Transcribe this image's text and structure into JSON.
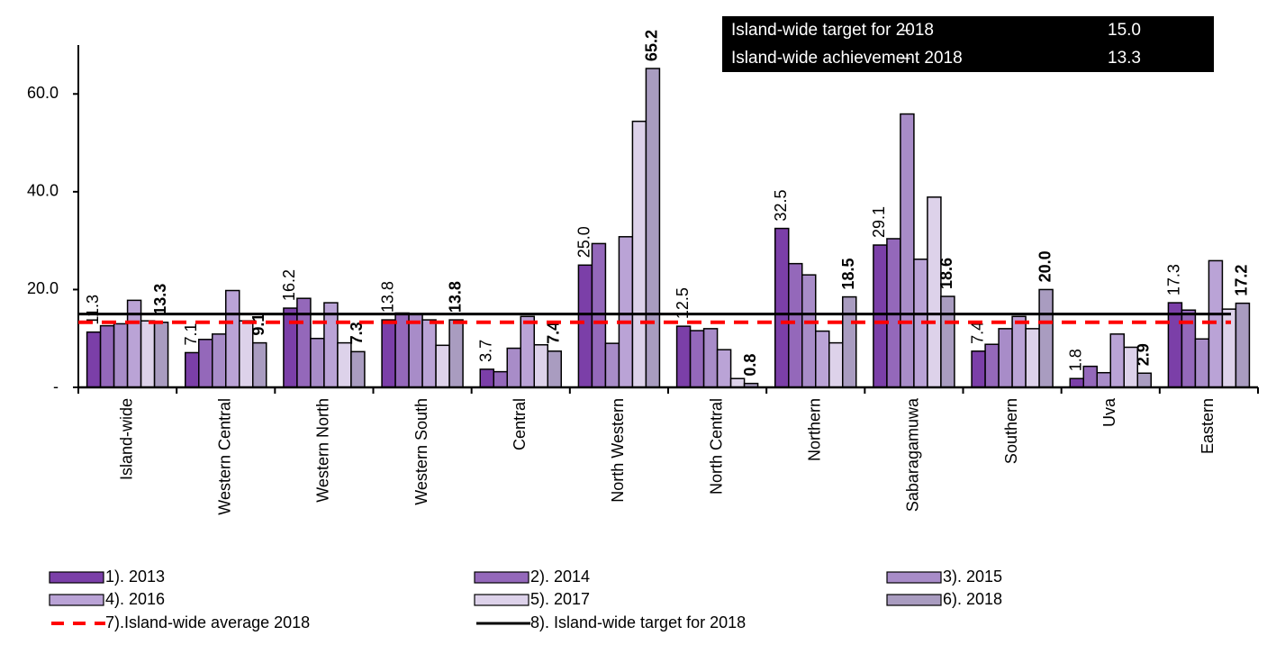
{
  "chart_data": {
    "type": "bar",
    "categories": [
      "Island-wide",
      "Western Central",
      "Western  North",
      "Western  South",
      "Central",
      "North Western",
      "North Central",
      "Northern",
      "Sabaragamuwa",
      "Southern",
      "Uva",
      "Eastern"
    ],
    "series": [
      {
        "name": "1). 2013",
        "color": "#7b3fa8",
        "values": [
          11.3,
          7.1,
          16.2,
          13.8,
          3.7,
          25.0,
          12.5,
          32.5,
          29.1,
          7.4,
          1.8,
          17.3
        ],
        "value_labels": [
          "11.3",
          "7.1",
          "16.2",
          "13.8",
          "3.7",
          "25.0",
          "12.5",
          "32.5",
          "29.1",
          "7.4",
          "1.8",
          "17.3"
        ]
      },
      {
        "name": "2). 2014",
        "color": "#9468ba",
        "values": [
          12.6,
          9.8,
          18.2,
          15.2,
          3.2,
          29.4,
          11.6,
          25.3,
          30.4,
          8.8,
          4.3,
          15.8
        ]
      },
      {
        "name": "3). 2015",
        "color": "#a88cc8",
        "values": [
          13.0,
          10.9,
          10.0,
          14.9,
          8.0,
          9.0,
          12.0,
          23.0,
          55.9,
          12.0,
          3.0,
          9.9
        ]
      },
      {
        "name": "4). 2016",
        "color": "#baa3d6",
        "values": [
          17.8,
          19.8,
          17.3,
          13.8,
          14.5,
          30.8,
          7.7,
          11.5,
          26.2,
          14.5,
          10.9,
          25.9
        ]
      },
      {
        "name": "5). 2017",
        "color": "#ddd2ea",
        "values": [
          13.6,
          13.6,
          9.1,
          8.6,
          8.7,
          54.4,
          1.8,
          9.1,
          38.9,
          12.0,
          8.2,
          16.0
        ]
      },
      {
        "name": "6). 2018",
        "color": "#a99cc0",
        "values": [
          13.3,
          9.1,
          7.3,
          13.8,
          7.4,
          65.2,
          0.8,
          18.5,
          18.6,
          20.0,
          2.9,
          17.2
        ],
        "value_labels": [
          "13.3",
          "9.1",
          "7.3",
          "13.8",
          "7.4",
          "65.2",
          "0.8",
          "18.5",
          "18.6",
          "20.0",
          "2.9",
          "17.2"
        ]
      }
    ],
    "reference_lines": [
      {
        "name": "7).Island-wide average 2018",
        "value": 13.3,
        "color": "#ff0000",
        "style": "dashed"
      },
      {
        "name": "8). Island-wide target for 2018",
        "value": 15.0,
        "color": "#000000",
        "style": "solid"
      }
    ],
    "annotation": [
      [
        "Island-wide target for 2018",
        "–",
        "15.0"
      ],
      [
        "Island-wide achievement  2018",
        "–",
        "13.3"
      ]
    ],
    "ylim": [
      0,
      70
    ],
    "yticks": [
      {
        "value": 0,
        "label": "-"
      },
      {
        "value": 20,
        "label": "20.0"
      },
      {
        "value": 40,
        "label": "40.0"
      },
      {
        "value": 60,
        "label": "60.0"
      }
    ]
  }
}
